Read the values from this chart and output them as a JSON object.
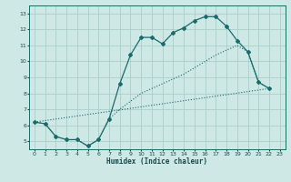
{
  "xlabel": "Humidex (Indice chaleur)",
  "xlim": [
    -0.5,
    23.5
  ],
  "ylim": [
    4.5,
    13.5
  ],
  "xticks": [
    0,
    1,
    2,
    3,
    4,
    5,
    6,
    7,
    8,
    9,
    10,
    11,
    12,
    13,
    14,
    15,
    16,
    17,
    18,
    19,
    20,
    21,
    22,
    23
  ],
  "yticks": [
    5,
    6,
    7,
    8,
    9,
    10,
    11,
    12,
    13
  ],
  "bg_color": "#cde8e5",
  "grid_color": "#a8cec8",
  "line_color": "#1a6b6b",
  "line1_x": [
    0,
    1,
    2,
    3,
    4,
    5,
    6,
    7,
    8,
    9,
    10,
    11,
    12,
    13,
    14,
    15,
    16,
    17,
    18,
    19,
    20,
    21,
    22
  ],
  "line1_y": [
    6.2,
    6.1,
    5.3,
    5.1,
    5.1,
    4.7,
    5.1,
    6.4,
    8.6,
    10.4,
    11.5,
    11.5,
    11.1,
    11.8,
    12.1,
    12.55,
    12.8,
    12.8,
    12.2,
    11.3,
    10.6,
    8.7,
    8.3
  ],
  "line2_x": [
    0,
    1,
    2,
    3,
    4,
    5,
    6,
    7,
    8,
    9,
    10,
    11,
    12,
    13,
    14,
    15,
    16,
    17,
    18,
    19,
    20,
    21,
    22
  ],
  "line2_y": [
    6.2,
    6.1,
    5.3,
    5.1,
    5.1,
    4.7,
    5.1,
    6.4,
    7.0,
    7.5,
    8.0,
    8.3,
    8.6,
    8.9,
    9.2,
    9.6,
    10.0,
    10.4,
    10.7,
    11.0,
    10.6,
    8.7,
    8.3
  ],
  "line3_x": [
    0,
    22
  ],
  "line3_y": [
    6.2,
    8.3
  ]
}
